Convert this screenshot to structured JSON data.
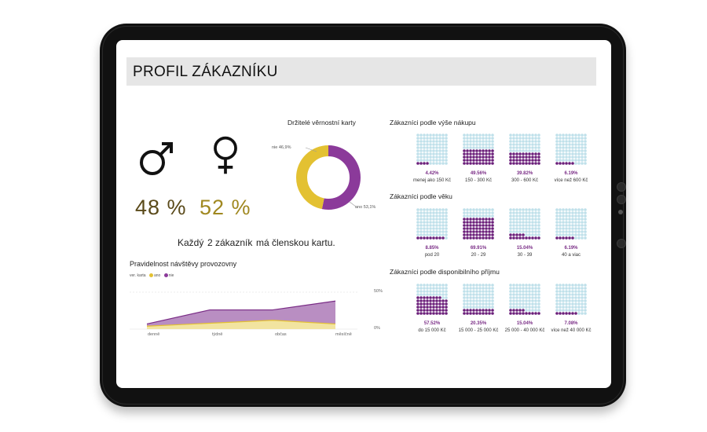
{
  "page": {
    "title": "PROFIL ZÁKAZNÍKU"
  },
  "colors": {
    "purple": "#8b3a9a",
    "dark_purple": "#6b1f7a",
    "yellow": "#e3c132",
    "light_blue": "#bfe0ea",
    "title_bg": "#e6e6e6"
  },
  "gender": {
    "male_icon": "male-symbol-icon",
    "female_icon": "female-symbol-icon",
    "male_pct": "48 %",
    "female_pct": "52 %"
  },
  "membership_sentence": {
    "prefix": "Každý",
    "highlight": "2 zákazník",
    "suffix": "má členskou kartu."
  },
  "loyalty_donut": {
    "title": "Držitelé věrnostní karty",
    "label_ne": "nie 46,9%",
    "label_ano": "ano 53,1%"
  },
  "visits_chart": {
    "title": "Pravidelnost návštěvy provozovny",
    "legend_title": "ver. karta",
    "legend_ano": "ano",
    "legend_nie": "nie",
    "y_top": "50%",
    "y_bottom": "0%",
    "x_labels": [
      "denně",
      "týdně",
      "občas",
      "měsíčně"
    ]
  },
  "purchase_section": {
    "title": "Zákazníci podle výše nákupu",
    "items": [
      {
        "pct": "4.42%",
        "label": "menej ako 150 Kč"
      },
      {
        "pct": "49.56%",
        "label": "150 - 300 Kč"
      },
      {
        "pct": "39.82%",
        "label": "300 - 600 Kč"
      },
      {
        "pct": "6.19%",
        "label": "více než 600 Kč"
      }
    ]
  },
  "age_section": {
    "title": "Zákazníci podle věku",
    "items": [
      {
        "pct": "8.85%",
        "label": "pod 20"
      },
      {
        "pct": "69.91%",
        "label": "20 - 29"
      },
      {
        "pct": "15.04%",
        "label": "30 - 39"
      },
      {
        "pct": "6.19%",
        "label": "40 a viac"
      }
    ]
  },
  "income_section": {
    "title": "Zákazníci podle disponibilního příjmu",
    "items": [
      {
        "pct": "57.52%",
        "label": "do 15 000 Kč"
      },
      {
        "pct": "20.35%",
        "label": "15 000 - 25 000 Kč"
      },
      {
        "pct": "15.04%",
        "label": "25 000 - 40 000 Kč"
      },
      {
        "pct": "7.08%",
        "label": "více než 40 000 Kč"
      }
    ]
  },
  "chart_data": [
    {
      "type": "pie",
      "title": "Držitelé věrnostní karty",
      "categories": [
        "nie",
        "ano"
      ],
      "values": [
        46.9,
        53.1
      ],
      "colors": [
        "#e3c132",
        "#8b3a9a"
      ]
    },
    {
      "type": "area",
      "title": "Pravidelnost návštěvy provozovny",
      "categories": [
        "denně",
        "týdně",
        "občas",
        "měsíčně"
      ],
      "ylim": [
        0,
        50
      ],
      "series": [
        {
          "name": "ano",
          "values": [
            3,
            18,
            14,
            31
          ]
        },
        {
          "name": "nie",
          "values": [
            4,
            8,
            12,
            7
          ]
        }
      ],
      "colors": [
        "#b98ec2",
        "#f2e4a0"
      ]
    }
  ],
  "waffle_values": {
    "purchase": [
      4.42,
      49.56,
      39.82,
      6.19
    ],
    "age": [
      8.85,
      69.91,
      15.04,
      6.19
    ],
    "income": [
      57.52,
      20.35,
      15.04,
      7.08
    ]
  }
}
